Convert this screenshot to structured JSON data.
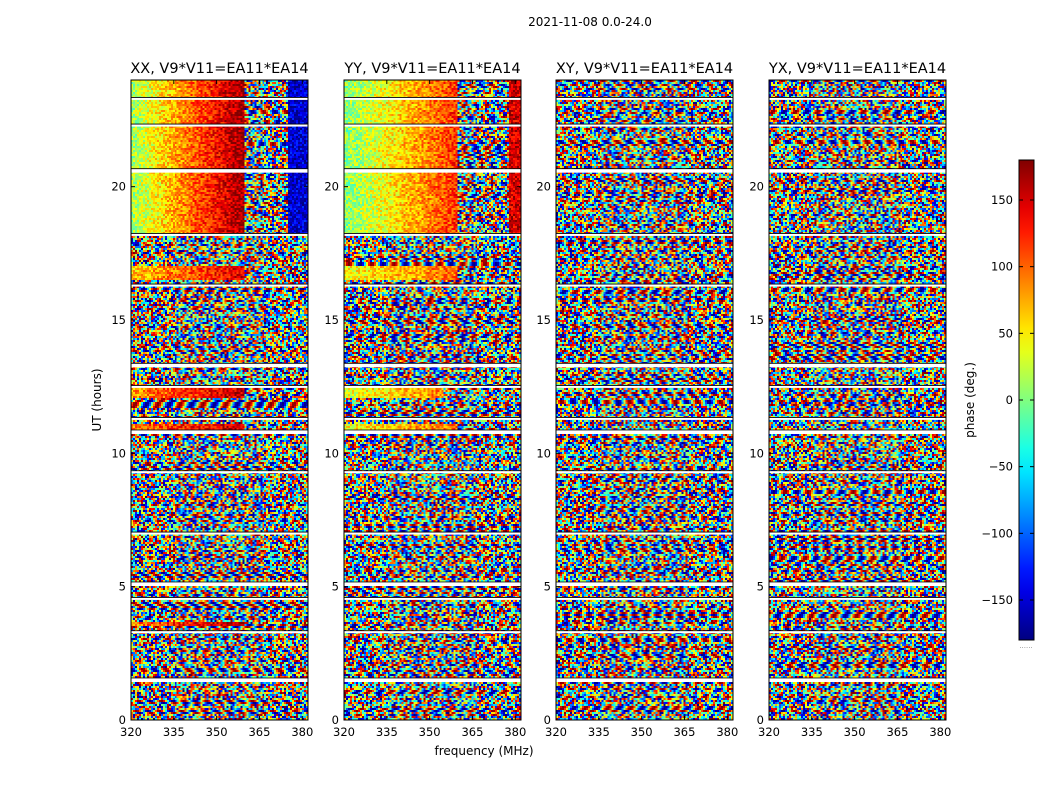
{
  "figure": {
    "suptitle": "2021-11-08 0.0-24.0",
    "xlabel": "frequency (MHz)",
    "ylabel": "UT (hours)",
    "colorbar_label": "phase (deg.)",
    "colorbar_ticks": [
      "150",
      "100",
      "50",
      "0",
      "−50",
      "−100",
      "−150"
    ],
    "colorbar_footnote": "......"
  },
  "chart_data": [
    {
      "type": "heatmap",
      "title": "XX, V9*V11=EA11*EA14",
      "polarization": "XX",
      "xlabel": "frequency (MHz)",
      "ylabel": "UT (hours)",
      "xlim": [
        320,
        382
      ],
      "ylim": [
        0,
        24
      ],
      "xticks": [
        "320",
        "335",
        "350",
        "365",
        "380"
      ],
      "yticks": [
        "0",
        "5",
        "10",
        "15",
        "20"
      ],
      "colorbar_range": [
        -180,
        180
      ],
      "coherent_blocks": [
        {
          "t0": 18.2,
          "t1": 24,
          "f0": 320,
          "f1": 360,
          "phase_start": 10,
          "phase_end": 175
        },
        {
          "t0": 18.2,
          "t1": 24,
          "f0": 375,
          "f1": 382,
          "phase_start": -150,
          "phase_end": -150
        },
        {
          "t0": 16.5,
          "t1": 17.0,
          "f0": 320,
          "f1": 360,
          "phase_start": 60,
          "phase_end": 150
        },
        {
          "t0": 12.1,
          "t1": 12.5,
          "f0": 320,
          "f1": 360,
          "phase_start": 80,
          "phase_end": 160
        },
        {
          "t0": 10.8,
          "t1": 11.1,
          "f0": 320,
          "f1": 360,
          "phase_start": 90,
          "phase_end": 160
        },
        {
          "t0": 3.5,
          "t1": 3.7,
          "f0": 320,
          "f1": 360,
          "phase_start": 90,
          "phase_end": 170
        }
      ],
      "gap_times": [
        1.5,
        3.3,
        4.55,
        5.1,
        7.0,
        9.3,
        10.8,
        11.3,
        12.5,
        13.3,
        16.3,
        18.2,
        20.6,
        22.3,
        23.3
      ]
    },
    {
      "type": "heatmap",
      "title": "YY, V9*V11=EA11*EA14",
      "polarization": "YY",
      "xlabel": "frequency (MHz)",
      "ylabel": "UT (hours)",
      "xlim": [
        320,
        382
      ],
      "ylim": [
        0,
        24
      ],
      "xticks": [
        "320",
        "335",
        "350",
        "365",
        "380"
      ],
      "yticks": [
        "0",
        "5",
        "10",
        "15",
        "20"
      ],
      "colorbar_range": [
        -180,
        180
      ],
      "coherent_blocks": [
        {
          "t0": 18.2,
          "t1": 24,
          "f0": 320,
          "f1": 360,
          "phase_start": 0,
          "phase_end": 120
        },
        {
          "t0": 18.2,
          "t1": 24,
          "f0": 378,
          "f1": 382,
          "phase_start": 150,
          "phase_end": 150
        },
        {
          "t0": 16.5,
          "t1": 17.0,
          "f0": 320,
          "f1": 360,
          "phase_start": 40,
          "phase_end": 100
        },
        {
          "t0": 12.1,
          "t1": 12.5,
          "f0": 320,
          "f1": 355,
          "phase_start": 30,
          "phase_end": 90
        },
        {
          "t0": 10.8,
          "t1": 11.1,
          "f0": 320,
          "f1": 360,
          "phase_start": 40,
          "phase_end": 100
        }
      ],
      "gap_times": [
        1.5,
        3.3,
        4.55,
        5.1,
        7.0,
        9.3,
        10.8,
        11.3,
        12.5,
        13.3,
        16.3,
        18.2,
        20.6,
        22.3,
        23.3
      ]
    },
    {
      "type": "heatmap",
      "title": "XY, V9*V11=EA11*EA14",
      "polarization": "XY",
      "xlabel": "frequency (MHz)",
      "ylabel": "UT (hours)",
      "xlim": [
        320,
        382
      ],
      "ylim": [
        0,
        24
      ],
      "xticks": [
        "320",
        "335",
        "350",
        "365",
        "380"
      ],
      "yticks": [
        "0",
        "5",
        "10",
        "15",
        "20"
      ],
      "colorbar_range": [
        -180,
        180
      ],
      "coherent_blocks": [],
      "gap_times": [
        1.5,
        3.3,
        4.55,
        5.1,
        7.0,
        9.3,
        10.8,
        11.3,
        12.5,
        13.3,
        16.3,
        18.2,
        20.6,
        22.3,
        23.3
      ]
    },
    {
      "type": "heatmap",
      "title": "YX, V9*V11=EA11*EA14",
      "polarization": "YX",
      "xlabel": "frequency (MHz)",
      "ylabel": "UT (hours)",
      "xlim": [
        320,
        382
      ],
      "ylim": [
        0,
        24
      ],
      "xticks": [
        "320",
        "335",
        "350",
        "365",
        "380"
      ],
      "yticks": [
        "0",
        "5",
        "10",
        "15",
        "20"
      ],
      "colorbar_range": [
        -180,
        180
      ],
      "coherent_blocks": [],
      "gap_times": [
        1.5,
        3.3,
        4.55,
        5.1,
        7.0,
        9.3,
        10.8,
        11.3,
        12.5,
        13.3,
        16.3,
        18.2,
        20.6,
        22.3,
        23.3
      ]
    }
  ]
}
